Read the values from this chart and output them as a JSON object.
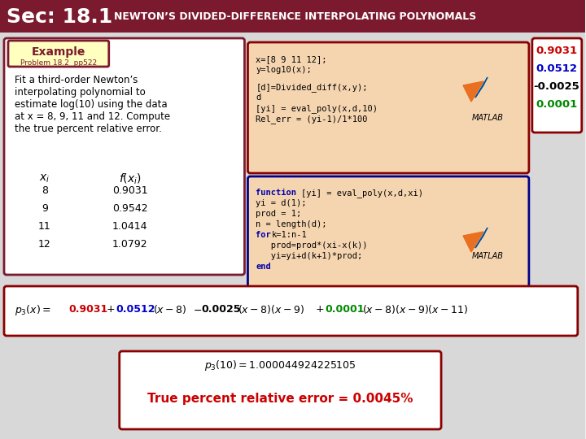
{
  "title_sec": "Sec: 18.1",
  "title_main": "NEWTON’S DIVIDED-DIFFERENCE INTERPOLATING POLYNOMALS",
  "header_bg": "#7B1A2E",
  "header_text_color": "#FFFFFF",
  "example_label": "Example",
  "example_sub": "Problem 18.2  pp522",
  "example_box_bg": "#FFFFFF",
  "example_box_border": "#7B1A2E",
  "body_bg": "#F5E6D0",
  "description": "Fit a third-order Newton’s\ninterpolating polynomial to\nestimate log(10) using the data\nat x = 8, 9, 11 and 12. Compute\nthe true percent relative error.",
  "table_xi": [
    "8",
    "9",
    "11",
    "12"
  ],
  "table_fxi": [
    "0.9031",
    "0.9542",
    "1.0414",
    "1.0792"
  ],
  "code1_lines": [
    "x=[8 9 11 12];",
    "y=log10(x);",
    "",
    "[d]=Divided_diff(x,y);",
    "d",
    "[yi] = eval_poly(x,d,10)",
    "Rel_err = (yi-1)/1*100"
  ],
  "code1_bg": "#F5D5B0",
  "code1_border": "#8B0000",
  "code2_lines": [
    "function [yi] = eval_poly(x,d,xi)",
    "yi = d(1);",
    "prod = 1;",
    "n = length(d);",
    "for k=1:n-1",
    "   prod=prod*(xi-x(k))",
    "   yi=yi+d(k+1)*prod;",
    "end"
  ],
  "code2_bg": "#F5D5B0",
  "code2_border": "#00008B",
  "values_box_bg": "#FFFFFF",
  "values_box_border": "#8B0000",
  "val1": "0.9031",
  "val1_color": "#CC0000",
  "val2": "0.0512",
  "val2_color": "#0000CC",
  "val3": "-0.0025",
  "val3_color": "#000000",
  "val4": "0.0001",
  "val4_color": "#008800",
  "formula_box_bg": "#FFFFFF",
  "formula_box_border": "#8B0000",
  "result_box_bg": "#FFFFFF",
  "result_box_border": "#8B0000",
  "result_line1": "p₃(10) = 1.000044924225105",
  "result_line2": "True percent relative error = 0.0045%",
  "result_line2_color": "#CC0000"
}
